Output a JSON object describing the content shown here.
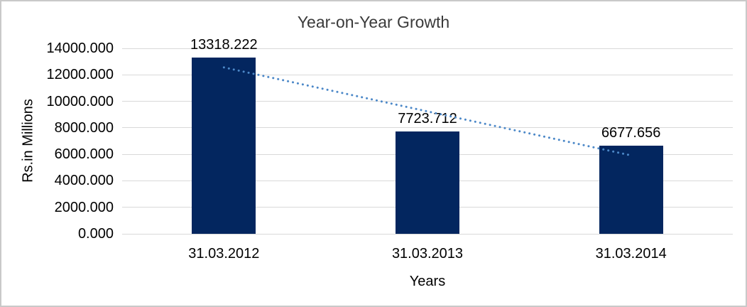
{
  "chart_data": {
    "type": "bar",
    "title": "Year-on-Year Growth",
    "xlabel": "Years",
    "ylabel": "Rs.in Millions",
    "categories": [
      "31.03.2012",
      "31.03.2013",
      "31.03.2014"
    ],
    "values": [
      13318.222,
      7723.712,
      6677.656
    ],
    "data_labels": [
      "13318.222",
      "7723.712",
      "6677.656"
    ],
    "ylim": [
      0,
      14000
    ],
    "ytick_step": 2000,
    "ytick_labels": [
      "0.000",
      "2000.000",
      "4000.000",
      "6000.000",
      "8000.000",
      "10000.000",
      "12000.000",
      "14000.000"
    ],
    "grid": true,
    "legend_position": "none",
    "bar_color": "#03265F",
    "gridline_color": "#D9D9D9",
    "trendline": {
      "type": "linear",
      "style": "dotted",
      "color": "#4C88C8",
      "start_value": 12560.1,
      "end_value": 5919.6
    }
  },
  "frame": {
    "border_color": "#C9C9C9",
    "background": "#FFFFFF"
  }
}
